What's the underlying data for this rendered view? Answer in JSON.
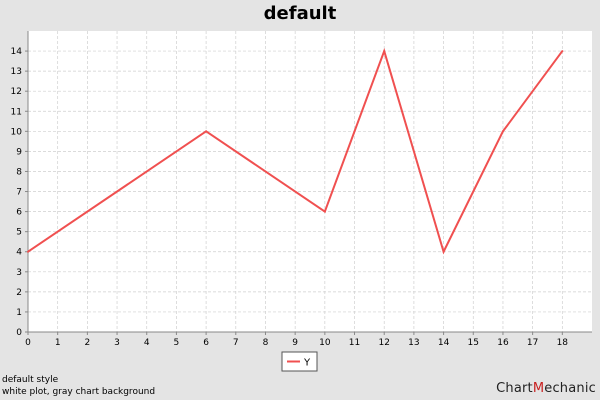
{
  "chart_data": {
    "type": "line",
    "title": "default",
    "xlabel": "",
    "ylabel": "",
    "x": [
      0,
      6,
      10,
      12,
      14,
      16,
      18
    ],
    "series": [
      {
        "name": "Y",
        "values": [
          4,
          10,
          6,
          14,
          4,
          10,
          14
        ],
        "color": "#f05050"
      }
    ],
    "xlim": [
      0,
      19
    ],
    "ylim": [
      0,
      15
    ],
    "xticks": [
      "0",
      "1",
      "2",
      "3",
      "4",
      "5",
      "6",
      "7",
      "8",
      "9",
      "10",
      "11",
      "12",
      "13",
      "14",
      "15",
      "16",
      "17",
      "18"
    ],
    "yticks": [
      "0",
      "1",
      "2",
      "3",
      "4",
      "5",
      "6",
      "7",
      "8",
      "9",
      "10",
      "11",
      "12",
      "13",
      "14"
    ],
    "grid": true,
    "legend_position": "bottom-center",
    "plot_background": "#ffffff",
    "chart_background": "#e4e4e4"
  },
  "footnotes": [
    "default style",
    "white plot, gray chart background"
  ],
  "brand": {
    "prefix": "C",
    "mid": "hart",
    "accent": "M",
    "suffix": "echanic"
  }
}
